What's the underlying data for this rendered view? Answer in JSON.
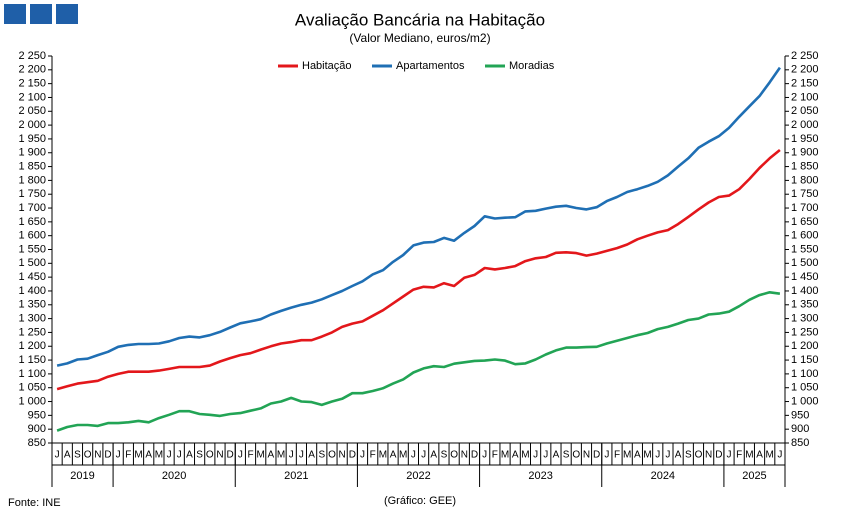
{
  "chart_data": {
    "type": "line",
    "title": "Avaliação Bancária na Habitação",
    "subtitle": "(Valor Mediano, euros/m2)",
    "source": "Fonte: INE",
    "credit": "(Gráfico: GEE)",
    "categories": [
      "J",
      "A",
      "S",
      "O",
      "N",
      "D",
      "J",
      "F",
      "M",
      "A",
      "M",
      "J",
      "J",
      "A",
      "S",
      "O",
      "N",
      "D",
      "J",
      "F",
      "M",
      "A",
      "M",
      "J",
      "J",
      "A",
      "S",
      "O",
      "N",
      "D",
      "J",
      "F",
      "M",
      "A",
      "M",
      "J",
      "J",
      "A",
      "S",
      "O",
      "N",
      "D",
      "J",
      "F",
      "M",
      "A",
      "M",
      "J",
      "J",
      "A",
      "S",
      "O",
      "N",
      "D",
      "J",
      "F",
      "M",
      "A",
      "M",
      "J",
      "J",
      "A",
      "S",
      "O",
      "N",
      "D",
      "J",
      "F",
      "M",
      "A",
      "M",
      "J"
    ],
    "years": [
      "2019",
      "2020",
      "2021",
      "2022",
      "2023",
      "2024",
      "2025"
    ],
    "series": [
      {
        "name": "Habitação",
        "color": "#e3171b",
        "values": [
          1045,
          1055,
          1065,
          1070,
          1075,
          1090,
          1100,
          1108,
          1108,
          1108,
          1112,
          1118,
          1125,
          1125,
          1125,
          1130,
          1145,
          1157,
          1168,
          1175,
          1188,
          1200,
          1210,
          1215,
          1222,
          1222,
          1235,
          1250,
          1270,
          1282,
          1290,
          1310,
          1330,
          1355,
          1380,
          1405,
          1415,
          1413,
          1428,
          1418,
          1448,
          1458,
          1483,
          1478,
          1483,
          1490,
          1508,
          1518,
          1523,
          1538,
          1540,
          1537,
          1528,
          1535,
          1545,
          1555,
          1568,
          1587,
          1600,
          1612,
          1620,
          1642,
          1668,
          1695,
          1720,
          1740,
          1745,
          1768,
          1805,
          1845,
          1880,
          1910
        ]
      },
      {
        "name": "Apartamentos",
        "color": "#1f6fb4",
        "values": [
          1130,
          1138,
          1152,
          1155,
          1168,
          1180,
          1198,
          1205,
          1208,
          1208,
          1210,
          1218,
          1230,
          1235,
          1232,
          1240,
          1252,
          1268,
          1283,
          1290,
          1298,
          1315,
          1328,
          1340,
          1350,
          1358,
          1370,
          1385,
          1400,
          1418,
          1435,
          1460,
          1475,
          1505,
          1530,
          1565,
          1575,
          1577,
          1592,
          1582,
          1610,
          1635,
          1670,
          1662,
          1665,
          1667,
          1688,
          1690,
          1698,
          1705,
          1708,
          1700,
          1695,
          1703,
          1725,
          1740,
          1758,
          1768,
          1780,
          1795,
          1818,
          1850,
          1880,
          1918,
          1940,
          1960,
          1990,
          2030,
          2068,
          2105,
          2155,
          2208
        ]
      },
      {
        "name": "Moradias",
        "color": "#22a455",
        "values": [
          895,
          908,
          915,
          915,
          912,
          922,
          922,
          925,
          930,
          925,
          940,
          952,
          965,
          965,
          955,
          952,
          948,
          955,
          958,
          967,
          975,
          993,
          1000,
          1013,
          1000,
          998,
          988,
          1000,
          1010,
          1030,
          1030,
          1038,
          1048,
          1065,
          1080,
          1105,
          1120,
          1128,
          1125,
          1137,
          1142,
          1147,
          1148,
          1152,
          1148,
          1135,
          1138,
          1152,
          1170,
          1185,
          1195,
          1195,
          1197,
          1198,
          1210,
          1220,
          1230,
          1240,
          1248,
          1262,
          1270,
          1282,
          1295,
          1300,
          1315,
          1318,
          1325,
          1345,
          1368,
          1385,
          1395,
          1390
        ]
      }
    ],
    "ylim": [
      850,
      2250
    ],
    "yticks": [
      850,
      900,
      950,
      {
        "value": 1000,
        "label": "1 000"
      },
      {
        "value": 1050,
        "label": "1 050"
      },
      {
        "value": 1100,
        "label": "1 100"
      },
      {
        "value": 1150,
        "label": "1 150"
      },
      {
        "value": 1200,
        "label": "1 200"
      },
      {
        "value": 1250,
        "label": "1 250"
      },
      {
        "value": 1300,
        "label": "1 300"
      },
      {
        "value": 1350,
        "label": "1 350"
      },
      {
        "value": 1400,
        "label": "1 400"
      },
      {
        "value": 1450,
        "label": "1 450"
      },
      {
        "value": 1500,
        "label": "1 500"
      },
      {
        "value": 1550,
        "label": "1 550"
      },
      {
        "value": 1600,
        "label": "1 600"
      },
      {
        "value": 1650,
        "label": "1 650"
      },
      {
        "value": 1700,
        "label": "1 700"
      },
      {
        "value": 1750,
        "label": "1 750"
      },
      {
        "value": 1800,
        "label": "1 800"
      },
      {
        "value": 1850,
        "label": "1 850"
      },
      {
        "value": 1900,
        "label": "1 900"
      },
      {
        "value": 1950,
        "label": "1 950"
      },
      {
        "value": 2000,
        "label": "2 000"
      },
      {
        "value": 2050,
        "label": "2 050"
      },
      {
        "value": 2100,
        "label": "2 100"
      },
      {
        "value": 2150,
        "label": "2 150"
      },
      {
        "value": 2200,
        "label": "2 200"
      },
      {
        "value": 2250,
        "label": "2 250"
      }
    ],
    "grid": false,
    "legend": "top"
  }
}
